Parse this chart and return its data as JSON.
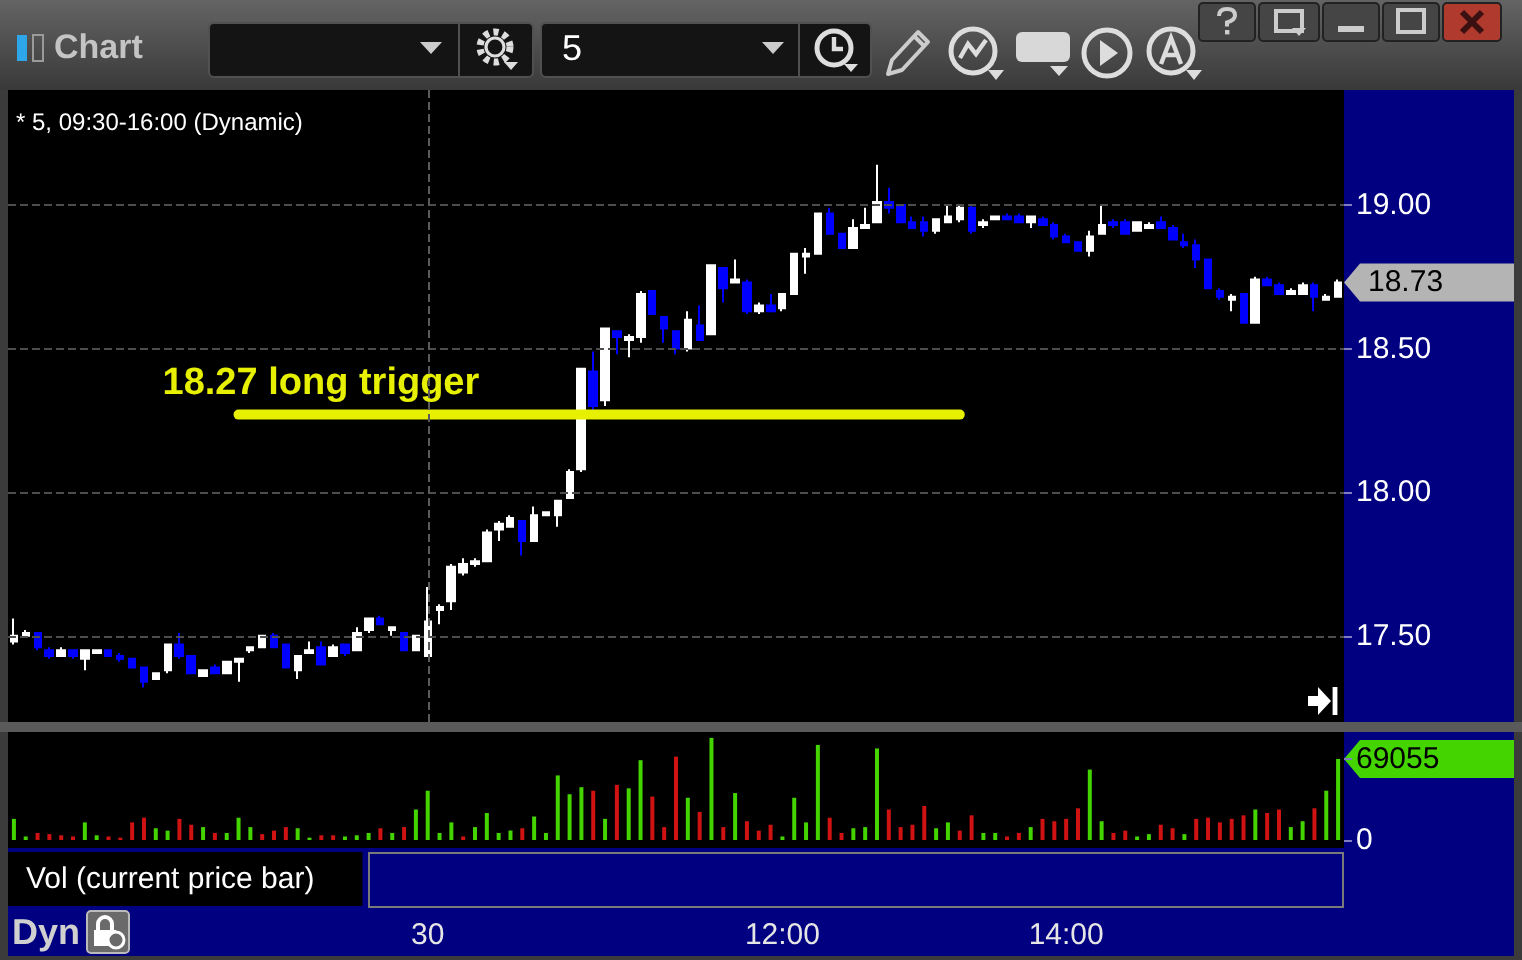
{
  "chart_data": [
    {
      "type": "candlestick",
      "title": "* 5, 09:30-16:00 (Dynamic)",
      "categories": [
        null,
        null,
        null,
        null,
        null,
        null,
        null,
        null,
        null,
        null,
        null,
        null,
        null,
        null,
        null,
        null,
        null,
        null,
        null,
        null,
        null,
        null,
        null,
        null,
        null,
        null,
        null,
        null,
        null,
        null,
        null,
        null,
        null,
        null,
        null,
        null,
        null,
        null,
        null,
        null,
        null,
        null,
        null,
        null,
        null,
        null,
        null,
        null,
        null,
        null,
        null,
        null,
        null,
        null,
        null,
        null,
        null,
        null,
        null,
        null,
        null,
        null,
        null,
        null,
        null,
        null,
        null,
        null,
        null,
        null,
        null,
        null,
        null,
        null,
        null,
        null,
        null,
        null,
        null,
        null,
        null,
        null,
        null,
        null,
        null,
        null,
        null,
        null,
        null,
        null,
        null,
        null,
        null,
        null,
        null,
        null,
        null,
        null,
        null,
        null,
        null,
        null,
        null,
        null,
        null,
        null,
        null,
        null,
        null,
        null,
        null,
        null,
        null
      ],
      "ohlc": [
        [
          17.48,
          17.56,
          17.47,
          17.5
        ],
        [
          17.5,
          17.52,
          17.5,
          17.51
        ],
        [
          17.51,
          17.51,
          17.45,
          17.46
        ],
        [
          17.45,
          17.46,
          17.42,
          17.43
        ],
        [
          17.43,
          17.46,
          17.43,
          17.45
        ],
        [
          17.45,
          17.45,
          17.42,
          17.43
        ],
        [
          17.42,
          17.45,
          17.38,
          17.45
        ],
        [
          17.44,
          17.45,
          17.44,
          17.45
        ],
        [
          17.45,
          17.45,
          17.43,
          17.43
        ],
        [
          17.43,
          17.44,
          17.41,
          17.42
        ],
        [
          17.42,
          17.42,
          17.39,
          17.39
        ],
        [
          17.39,
          17.39,
          17.32,
          17.34
        ],
        [
          17.35,
          17.37,
          17.35,
          17.37
        ],
        [
          17.38,
          17.47,
          17.37,
          17.47
        ],
        [
          17.47,
          17.51,
          17.42,
          17.43
        ],
        [
          17.43,
          17.43,
          17.37,
          17.37
        ],
        [
          17.36,
          17.38,
          17.36,
          17.38
        ],
        [
          17.39,
          17.4,
          17.37,
          17.37
        ],
        [
          17.37,
          17.41,
          17.37,
          17.41
        ],
        [
          17.41,
          17.42,
          17.34,
          17.42
        ],
        [
          17.45,
          17.46,
          17.44,
          17.46
        ],
        [
          17.46,
          17.5,
          17.46,
          17.5
        ],
        [
          17.5,
          17.51,
          17.46,
          17.46
        ],
        [
          17.47,
          17.47,
          17.39,
          17.39
        ],
        [
          17.38,
          17.43,
          17.35,
          17.43
        ],
        [
          17.44,
          17.48,
          17.44,
          17.45
        ],
        [
          17.46,
          17.48,
          17.4,
          17.4
        ],
        [
          17.43,
          17.47,
          17.43,
          17.46
        ],
        [
          17.47,
          17.47,
          17.43,
          17.44
        ],
        [
          17.45,
          17.53,
          17.45,
          17.51
        ],
        [
          17.52,
          17.56,
          17.51,
          17.56
        ],
        [
          17.56,
          17.57,
          17.54,
          17.54
        ],
        [
          17.52,
          17.53,
          17.5,
          17.53
        ],
        [
          17.51,
          17.51,
          17.45,
          17.45
        ],
        [
          17.45,
          17.5,
          17.45,
          17.5
        ],
        [
          17.43,
          17.67,
          17.43,
          17.55
        ],
        [
          17.59,
          17.61,
          17.54,
          17.6
        ],
        [
          17.62,
          17.75,
          17.59,
          17.74
        ],
        [
          17.72,
          17.77,
          17.71,
          17.75
        ],
        [
          17.75,
          17.77,
          17.74,
          17.76
        ],
        [
          17.76,
          17.87,
          17.76,
          17.86
        ],
        [
          17.87,
          17.9,
          17.83,
          17.89
        ],
        [
          17.88,
          17.92,
          17.88,
          17.91
        ],
        [
          17.9,
          17.9,
          17.78,
          17.83
        ],
        [
          17.83,
          17.95,
          17.83,
          17.92
        ],
        [
          17.92,
          17.93,
          17.92,
          17.93
        ],
        [
          17.92,
          17.97,
          17.88,
          17.97
        ],
        [
          17.98,
          18.08,
          17.98,
          18.07
        ],
        [
          18.08,
          18.43,
          18.07,
          18.43
        ],
        [
          18.42,
          18.49,
          18.28,
          18.3
        ],
        [
          18.32,
          18.57,
          18.3,
          18.57
        ],
        [
          18.56,
          18.56,
          18.48,
          18.54
        ],
        [
          18.53,
          18.55,
          18.47,
          18.54
        ],
        [
          18.54,
          18.7,
          18.52,
          18.69
        ],
        [
          18.7,
          18.7,
          18.62,
          18.62
        ],
        [
          18.61,
          18.61,
          18.52,
          18.57
        ],
        [
          18.56,
          18.56,
          18.48,
          18.5
        ],
        [
          18.5,
          18.63,
          18.49,
          18.6
        ],
        [
          18.58,
          18.65,
          18.53,
          18.53
        ],
        [
          18.55,
          18.79,
          18.55,
          18.79
        ],
        [
          18.78,
          18.78,
          18.66,
          18.71
        ],
        [
          18.73,
          18.81,
          18.73,
          18.74
        ],
        [
          18.73,
          18.74,
          18.62,
          18.63
        ],
        [
          18.63,
          18.66,
          18.62,
          18.65
        ],
        [
          18.65,
          18.69,
          18.63,
          18.63
        ],
        [
          18.64,
          18.69,
          18.63,
          18.69
        ],
        [
          18.69,
          18.83,
          18.69,
          18.83
        ],
        [
          18.82,
          18.85,
          18.76,
          18.83
        ],
        [
          18.83,
          18.97,
          18.83,
          18.97
        ],
        [
          18.97,
          18.99,
          18.9,
          18.9
        ],
        [
          18.9,
          18.9,
          18.85,
          18.85
        ],
        [
          18.85,
          18.95,
          18.85,
          18.92
        ],
        [
          18.92,
          18.99,
          18.92,
          18.93
        ],
        [
          18.94,
          19.14,
          18.94,
          19.01
        ],
        [
          19.01,
          19.06,
          18.97,
          18.99
        ],
        [
          19.0,
          19.0,
          18.94,
          18.94
        ],
        [
          18.94,
          18.96,
          18.92,
          18.92
        ],
        [
          18.94,
          18.96,
          18.89,
          18.91
        ],
        [
          18.91,
          18.95,
          18.9,
          18.95
        ],
        [
          18.94,
          19.0,
          18.94,
          18.96
        ],
        [
          18.95,
          19.0,
          18.94,
          18.99
        ],
        [
          18.99,
          19.0,
          18.9,
          18.91
        ],
        [
          18.93,
          18.95,
          18.92,
          18.94
        ],
        [
          18.95,
          18.96,
          18.95,
          18.96
        ],
        [
          18.96,
          18.97,
          18.95,
          18.95
        ],
        [
          18.96,
          18.97,
          18.94,
          18.94
        ],
        [
          18.94,
          18.96,
          18.92,
          18.96
        ],
        [
          18.95,
          18.96,
          18.93,
          18.93
        ],
        [
          18.93,
          18.94,
          18.88,
          18.89
        ],
        [
          18.89,
          18.9,
          18.87,
          18.87
        ],
        [
          18.87,
          18.87,
          18.84,
          18.84
        ],
        [
          18.84,
          18.91,
          18.82,
          18.89
        ],
        [
          18.9,
          19.0,
          18.9,
          18.93
        ],
        [
          18.94,
          18.95,
          18.92,
          18.93
        ],
        [
          18.94,
          18.95,
          18.9,
          18.9
        ],
        [
          18.91,
          18.94,
          18.91,
          18.94
        ],
        [
          18.92,
          18.94,
          18.92,
          18.93
        ],
        [
          18.94,
          18.96,
          18.92,
          18.92
        ],
        [
          18.92,
          18.93,
          18.88,
          18.88
        ],
        [
          18.87,
          18.9,
          18.85,
          18.86
        ],
        [
          18.86,
          18.88,
          18.78,
          18.81
        ],
        [
          18.81,
          18.81,
          18.71,
          18.71
        ],
        [
          18.7,
          18.71,
          18.67,
          18.68
        ],
        [
          18.67,
          18.69,
          18.63,
          18.68
        ],
        [
          18.69,
          18.69,
          18.59,
          18.59
        ],
        [
          18.59,
          18.75,
          18.59,
          18.74
        ],
        [
          18.74,
          18.75,
          18.72,
          18.72
        ],
        [
          18.72,
          18.73,
          18.69,
          18.69
        ],
        [
          18.69,
          18.71,
          18.69,
          18.7
        ],
        [
          18.69,
          18.73,
          18.69,
          18.72
        ],
        [
          18.72,
          18.73,
          18.63,
          18.68
        ],
        [
          18.67,
          18.69,
          18.67,
          18.68
        ],
        [
          18.68,
          18.74,
          18.68,
          18.73
        ]
      ],
      "colors": [
        "#ffffff",
        "#ffffff",
        "#0000ff",
        "#0000ff",
        "#ffffff",
        "#0000ff",
        "#ffffff",
        "#ffffff",
        "#0000ff",
        "#0000ff",
        "#0000ff",
        "#0000ff",
        "#ffffff",
        "#ffffff",
        "#0000ff",
        "#0000ff",
        "#ffffff",
        "#0000ff",
        "#ffffff",
        "#ffffff",
        "#ffffff",
        "#ffffff",
        "#0000ff",
        "#0000ff",
        "#ffffff",
        "#ffffff",
        "#0000ff",
        "#ffffff",
        "#0000ff",
        "#ffffff",
        "#ffffff",
        "#0000ff",
        "#ffffff",
        "#0000ff",
        "#ffffff",
        "#ffffff",
        "#ffffff",
        "#ffffff",
        "#ffffff",
        "#ffffff",
        "#ffffff",
        "#ffffff",
        "#ffffff",
        "#0000ff",
        "#ffffff",
        "#ffffff",
        "#ffffff",
        "#ffffff",
        "#ffffff",
        "#0000ff",
        "#ffffff",
        "#0000ff",
        "#ffffff",
        "#ffffff",
        "#0000ff",
        "#0000ff",
        "#0000ff",
        "#ffffff",
        "#0000ff",
        "#ffffff",
        "#0000ff",
        "#ffffff",
        "#0000ff",
        "#ffffff",
        "#0000ff",
        "#ffffff",
        "#ffffff",
        "#ffffff",
        "#ffffff",
        "#0000ff",
        "#0000ff",
        "#ffffff",
        "#ffffff",
        "#ffffff",
        "#0000ff",
        "#0000ff",
        "#0000ff",
        "#0000ff",
        "#ffffff",
        "#ffffff",
        "#ffffff",
        "#0000ff",
        "#ffffff",
        "#ffffff",
        "#0000ff",
        "#0000ff",
        "#ffffff",
        "#0000ff",
        "#0000ff",
        "#0000ff",
        "#0000ff",
        "#ffffff",
        "#ffffff",
        "#0000ff",
        "#0000ff",
        "#ffffff",
        "#ffffff",
        "#0000ff",
        "#0000ff",
        "#0000ff",
        "#0000ff",
        "#0000ff",
        "#0000ff",
        "#ffffff",
        "#0000ff",
        "#ffffff",
        "#0000ff",
        "#0000ff",
        "#ffffff",
        "#ffffff",
        "#0000ff",
        "#ffffff",
        "#ffffff"
      ],
      "series": [
        {
          "type": "line",
          "name": "18.27 long trigger",
          "color": "#e6f000",
          "values": [
            null,
            null,
            null,
            null,
            null,
            null,
            null,
            null,
            null,
            null,
            null,
            null,
            null,
            null,
            null,
            null,
            null,
            null,
            null,
            18.27,
            18.27,
            18.27,
            18.27,
            18.27,
            18.27,
            18.27,
            18.27,
            18.27,
            18.27,
            18.27,
            18.27,
            18.27,
            18.27,
            18.27,
            18.27,
            18.27,
            18.27,
            18.27,
            18.27,
            18.27,
            18.27,
            18.27,
            18.27,
            18.27,
            18.27,
            18.27,
            18.27,
            18.27,
            18.27,
            18.27,
            18.27,
            18.27,
            18.27,
            18.27,
            18.27,
            18.27,
            18.27,
            18.27,
            18.27,
            18.27,
            18.27,
            18.27,
            18.27,
            18.27,
            18.27,
            18.27,
            18.27,
            18.27,
            18.27,
            18.27,
            18.27,
            18.27,
            18.27,
            18.27,
            18.27,
            18.27,
            18.27,
            18.27,
            18.27,
            18.27,
            18.27,
            null,
            null,
            null,
            null,
            null,
            null,
            null,
            null,
            null,
            null,
            null,
            null,
            null,
            null,
            null,
            null,
            null,
            null,
            null,
            null,
            null,
            null,
            null,
            null,
            null,
            null,
            null,
            null,
            null,
            null,
            null,
            null
          ]
        }
      ],
      "ylim": [
        17.2,
        19.4
      ],
      "yticks": [
        {
          "value": 17.5,
          "label": "17.50"
        },
        {
          "value": 18,
          "label": "18.00"
        },
        {
          "value": 18.5,
          "label": "18.50"
        },
        {
          "value": 19,
          "label": "19.00"
        }
      ],
      "grid": "y",
      "tick_labels": "y",
      "ref_lines": [
        {
          "axis": "x",
          "value": "30",
          "color": "#5a5a5a",
          "line_style": "dashed"
        }
      ],
      "annotations": [
        "Chart",
        "5",
        "18.73"
      ]
    },
    {
      "type": "bar",
      "title": "Vol (current price bar)",
      "categories": [
        null,
        null,
        null,
        null,
        null,
        null,
        null,
        null,
        null,
        null,
        null,
        null,
        null,
        null,
        null,
        null,
        null,
        null,
        null,
        null,
        null,
        null,
        null,
        null,
        null,
        null,
        null,
        null,
        null,
        null,
        null,
        null,
        null,
        null,
        null,
        "30",
        null,
        null,
        null,
        null,
        null,
        null,
        null,
        null,
        null,
        null,
        null,
        null,
        null,
        null,
        null,
        null,
        null,
        null,
        null,
        null,
        null,
        null,
        null,
        null,
        null,
        null,
        null,
        null,
        null,
        "12:00",
        null,
        null,
        null,
        null,
        null,
        null,
        null,
        null,
        null,
        null,
        null,
        null,
        null,
        null,
        null,
        null,
        null,
        null,
        null,
        null,
        null,
        null,
        null,
        "14:00",
        null,
        null,
        null,
        null,
        null,
        null,
        null,
        null,
        null,
        null,
        null,
        null,
        null,
        null,
        null,
        null,
        null,
        null,
        null,
        null,
        null,
        null,
        null
      ],
      "values": [
        18000,
        3000,
        6000,
        5000,
        4000,
        3000,
        15000,
        4000,
        3000,
        2000,
        15000,
        19000,
        10000,
        8000,
        18000,
        13000,
        11000,
        6000,
        6000,
        19000,
        11000,
        5000,
        8000,
        11000,
        10000,
        2000,
        4000,
        4000,
        3000,
        4000,
        6000,
        10000,
        6000,
        11000,
        26000,
        42000,
        6000,
        15000,
        3000,
        11000,
        23000,
        6000,
        8000,
        10000,
        20000,
        6000,
        55000,
        39000,
        45000,
        42000,
        18000,
        47000,
        44000,
        68000,
        37000,
        11000,
        71000,
        36000,
        24000,
        87000,
        11000,
        40000,
        16000,
        8000,
        13000,
        3000,
        36000,
        15000,
        81000,
        19000,
        6000,
        10000,
        11000,
        78000,
        26000,
        11000,
        13000,
        29000,
        10000,
        15000,
        8000,
        21000,
        6000,
        6000,
        3000,
        6000,
        11000,
        18000,
        16000,
        18000,
        27000,
        60000,
        16000,
        6000,
        8000,
        3000,
        5000,
        13000,
        10000,
        5000,
        18000,
        19000,
        15000,
        18000,
        21000,
        26000,
        23000,
        26000,
        11000,
        16000,
        27000,
        42000,
        69055
      ],
      "colors": [
        "#44d400",
        "#44d400",
        "#d11212",
        "#d11212",
        "#d11212",
        "#d11212",
        "#44d400",
        "#44d400",
        "#d11212",
        "#d11212",
        "#d11212",
        "#d11212",
        "#44d400",
        "#44d400",
        "#d11212",
        "#d11212",
        "#44d400",
        "#d11212",
        "#44d400",
        "#44d400",
        "#44d400",
        "#d11212",
        "#d11212",
        "#d11212",
        "#44d400",
        "#44d400",
        "#d11212",
        "#d11212",
        "#44d400",
        "#44d400",
        "#44d400",
        "#d11212",
        "#44d400",
        "#d11212",
        "#44d400",
        "#44d400",
        "#44d400",
        "#44d400",
        "#d11212",
        "#44d400",
        "#44d400",
        "#44d400",
        "#44d400",
        "#d11212",
        "#44d400",
        "#44d400",
        "#44d400",
        "#44d400",
        "#44d400",
        "#d11212",
        "#44d400",
        "#d11212",
        "#44d400",
        "#44d400",
        "#d11212",
        "#d11212",
        "#d11212",
        "#44d400",
        "#d11212",
        "#44d400",
        "#d11212",
        "#44d400",
        "#d11212",
        "#d11212",
        "#d11212",
        "#44d400",
        "#44d400",
        "#44d400",
        "#44d400",
        "#d11212",
        "#d11212",
        "#44d400",
        "#44d400",
        "#44d400",
        "#d11212",
        "#d11212",
        "#d11212",
        "#d11212",
        "#44d400",
        "#44d400",
        "#d11212",
        "#d11212",
        "#44d400",
        "#44d400",
        "#d11212",
        "#d11212",
        "#44d400",
        "#d11212",
        "#d11212",
        "#d11212",
        "#d11212",
        "#44d400",
        "#44d400",
        "#d11212",
        "#d11212",
        "#44d400",
        "#44d400",
        "#d11212",
        "#d11212",
        "#44d400",
        "#d11212",
        "#d11212",
        "#d11212",
        "#d11212",
        "#d11212",
        "#44d400",
        "#d11212",
        "#d11212",
        "#44d400",
        "#44d400",
        "#d11212",
        "#44d400",
        "#44d400"
      ],
      "ylim": [
        0,
        92000
      ],
      "yticks": [
        0,
        69055
      ],
      "annotations": [
        "Dyn"
      ]
    }
  ]
}
